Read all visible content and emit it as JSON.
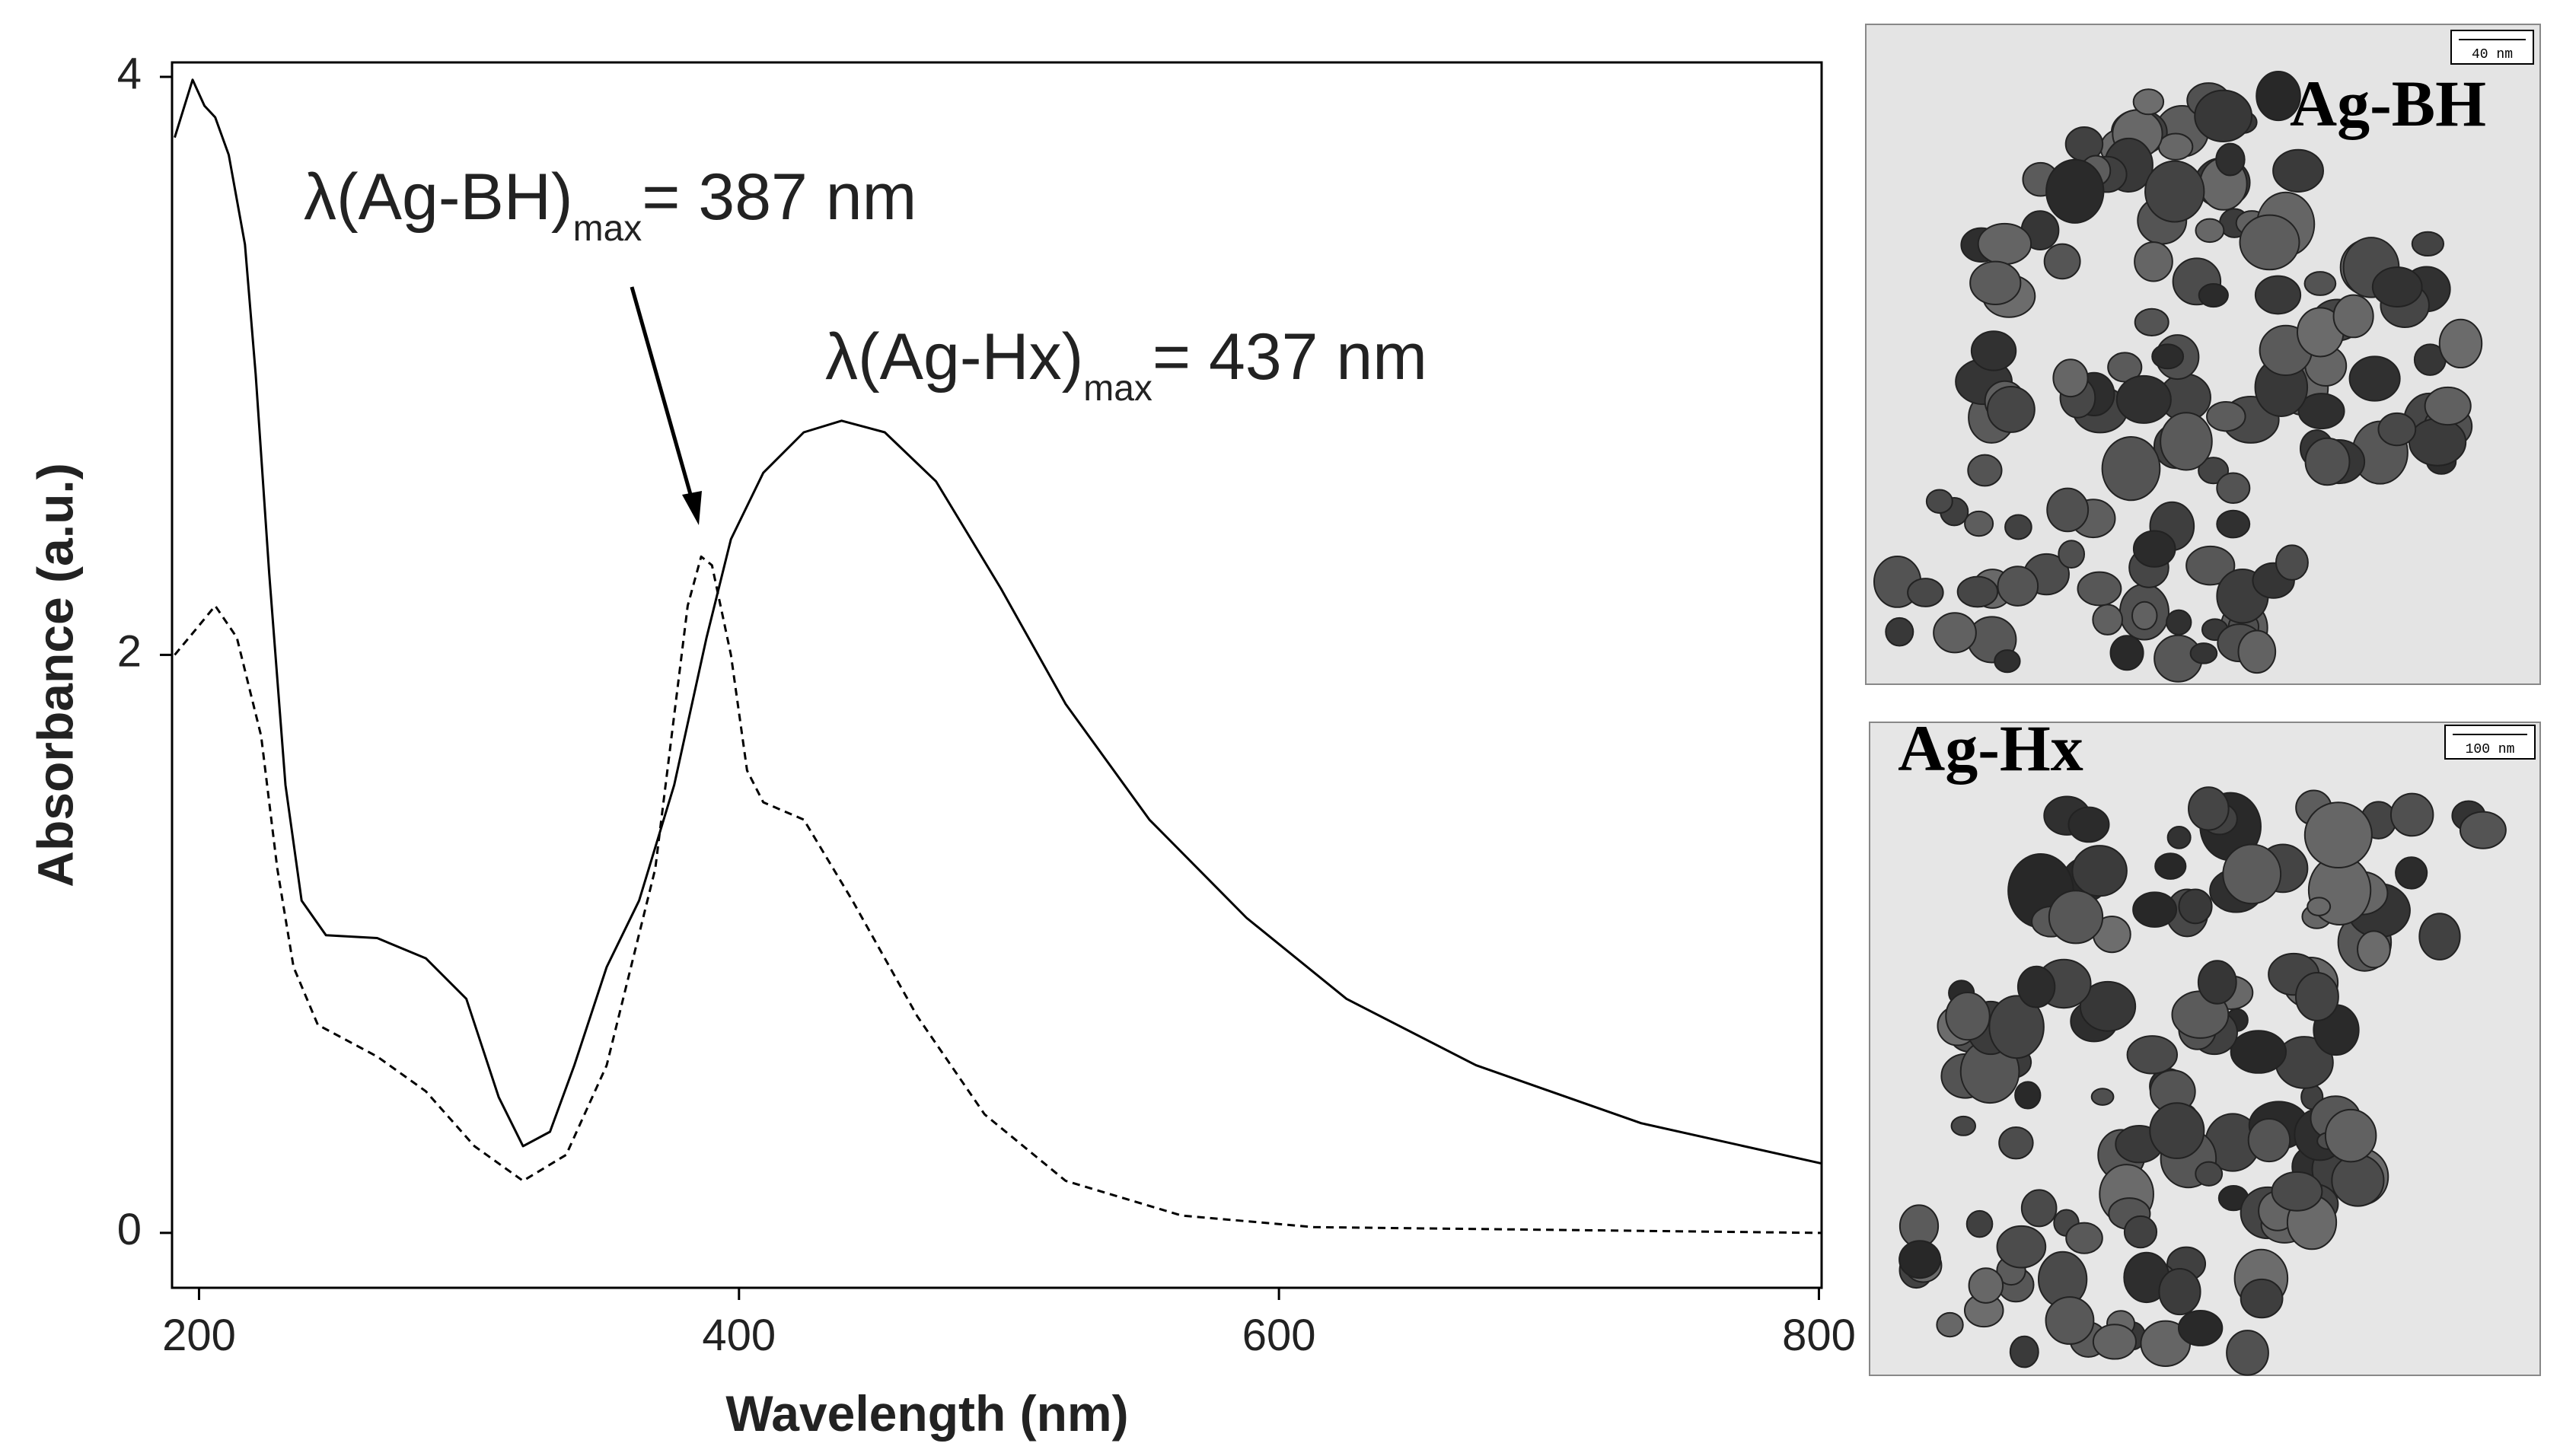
{
  "chart_data": {
    "type": "line",
    "xlabel": "Wavelength (nm)",
    "ylabel": "Absorbance (a.u.)",
    "xlim": [
      190,
      801
    ],
    "ylim": [
      -0.19,
      4.05
    ],
    "xticks": [
      200,
      400,
      600,
      800
    ],
    "yticks": [
      0,
      2,
      4
    ],
    "series": [
      {
        "style": "solid",
        "color": "#000000",
        "x": [
          191,
          197.6,
          202,
          206,
          211,
          217,
          221,
          226,
          232,
          238,
          247,
          266,
          284,
          299,
          311,
          320,
          330,
          339,
          351,
          363,
          376,
          388,
          397,
          409,
          424,
          438,
          454,
          473,
          497,
          521,
          552,
          588,
          625,
          673,
          734,
          801
        ],
        "values": [
          3.79,
          3.99,
          3.9,
          3.86,
          3.73,
          3.42,
          2.97,
          2.28,
          1.55,
          1.15,
          1.03,
          1.02,
          0.95,
          0.81,
          0.47,
          0.3,
          0.35,
          0.58,
          0.92,
          1.15,
          1.55,
          2.06,
          2.4,
          2.63,
          2.77,
          2.81,
          2.77,
          2.6,
          2.23,
          1.83,
          1.43,
          1.09,
          0.81,
          0.58,
          0.38,
          0.24
        ]
      },
      {
        "style": "dashed",
        "color": "#000000",
        "x": [
          191,
          199,
          206,
          214,
          223,
          229,
          235,
          244,
          266,
          284,
          302,
          320,
          336,
          351,
          369,
          381,
          386,
          390,
          397,
          403,
          409,
          424,
          442,
          466,
          491,
          521,
          564,
          613,
          801
        ],
        "values": [
          2.0,
          2.09,
          2.17,
          2.06,
          1.72,
          1.26,
          0.92,
          0.72,
          0.61,
          0.49,
          0.3,
          0.18,
          0.27,
          0.58,
          1.26,
          2.17,
          2.34,
          2.31,
          2.0,
          1.6,
          1.49,
          1.43,
          1.15,
          0.75,
          0.41,
          0.18,
          0.06,
          0.02,
          0.0
        ]
      }
    ],
    "annotations": [
      {
        "prefix": "λ(Ag-BH)",
        "sub": "max",
        "suffix": "= 387 nm"
      },
      {
        "prefix": "λ(Ag-Hx)",
        "sub": "max",
        "suffix": "= 437 nm"
      }
    ]
  },
  "images": [
    {
      "label": "Ag-BH",
      "scale_bar": "40 nm"
    },
    {
      "label": "Ag-Hx",
      "scale_bar": "100 nm"
    }
  ]
}
